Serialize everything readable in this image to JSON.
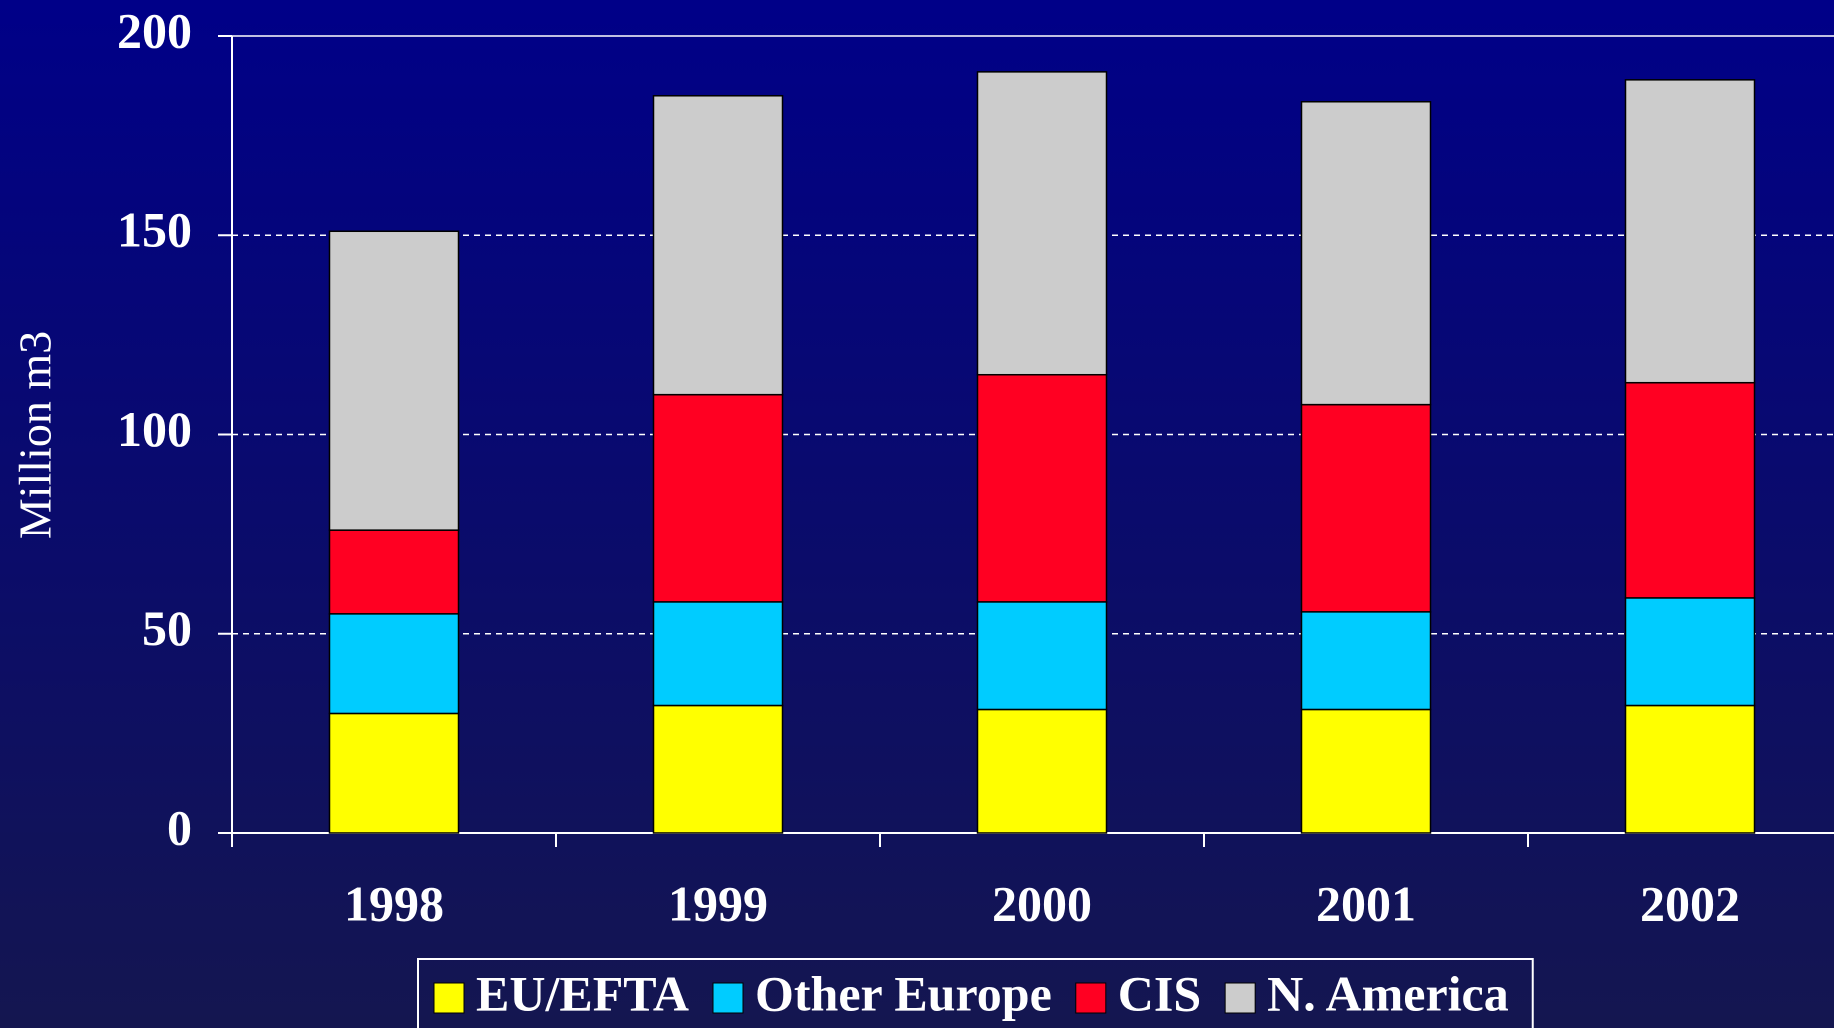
{
  "chart_data": {
    "type": "stacked_bar",
    "ylabel": "Million m3",
    "categories": [
      "1998",
      "1999",
      "2000",
      "2001",
      "2002"
    ],
    "series": [
      {
        "name": "EU/EFTA",
        "color": "#ffff00",
        "values": [
          30,
          32,
          31,
          31,
          32
        ]
      },
      {
        "name": "Other Europe",
        "color": "#00ccff",
        "values": [
          25,
          26,
          27,
          24.5,
          27
        ]
      },
      {
        "name": "CIS",
        "color": "#ff0022",
        "values": [
          21,
          52,
          57,
          52,
          54
        ]
      },
      {
        "name": "N. America",
        "color": "#cccccc",
        "values": [
          75,
          75,
          76,
          76,
          76
        ]
      }
    ],
    "ylim": [
      0,
      200
    ],
    "yticks": [
      0,
      50,
      100,
      150,
      200
    ],
    "grid": true,
    "legend": "bottom"
  }
}
